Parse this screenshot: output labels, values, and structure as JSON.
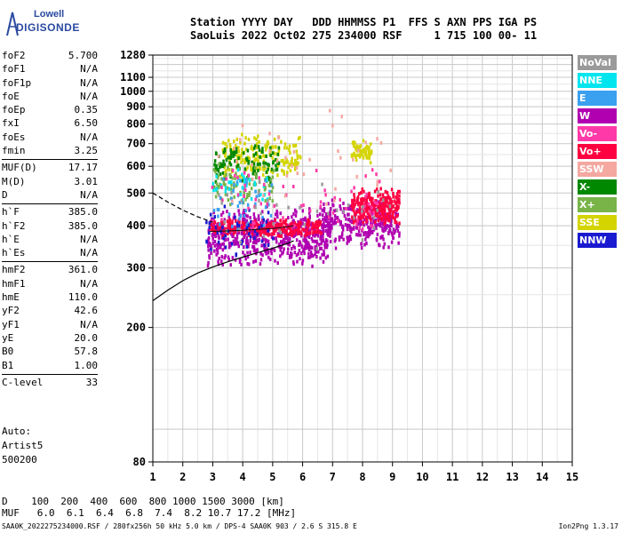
{
  "logo": {
    "line1": "Lowell",
    "line2": "DIGISONDE"
  },
  "header": {
    "labels": "Station YYYY DAY   DDD HHMMSS P1  FFS S AXN PPS IGA PS",
    "values": "SaoLuis 2022 Oct02 275 234000 RSF     1 715 100 00- 11"
  },
  "params": [
    {
      "label": "foF2",
      "value": "5.700"
    },
    {
      "label": "foF1",
      "value": "N/A"
    },
    {
      "label": "foF1p",
      "value": "N/A"
    },
    {
      "label": "foE",
      "value": "N/A"
    },
    {
      "label": "foEp",
      "value": "0.35"
    },
    {
      "label": "fxI",
      "value": "6.50"
    },
    {
      "label": "foEs",
      "value": "N/A"
    },
    {
      "label": "fmin",
      "value": "3.25"
    },
    {
      "sep": true
    },
    {
      "label": "MUF(D)",
      "value": "17.17"
    },
    {
      "label": "M(D)",
      "value": "3.01"
    },
    {
      "label": "D",
      "value": "N/A"
    },
    {
      "sep": true
    },
    {
      "label": "h`F",
      "value": "385.0"
    },
    {
      "label": "h`F2",
      "value": "385.0"
    },
    {
      "label": "h`E",
      "value": "N/A"
    },
    {
      "label": "h`Es",
      "value": "N/A"
    },
    {
      "sep": true
    },
    {
      "label": "hmF2",
      "value": "361.0"
    },
    {
      "label": "hmF1",
      "value": "N/A"
    },
    {
      "label": "hmE",
      "value": "110.0"
    },
    {
      "label": "yF2",
      "value": "42.6"
    },
    {
      "label": "yF1",
      "value": "N/A"
    },
    {
      "label": "yE",
      "value": "20.0"
    },
    {
      "label": "B0",
      "value": "57.8"
    },
    {
      "label": "B1",
      "value": "1.00"
    },
    {
      "sep": true
    },
    {
      "label": "C-level",
      "value": "33"
    }
  ],
  "auto": {
    "line1": "Auto:",
    "line2": "Artist5",
    "line3": "500200"
  },
  "legend": [
    {
      "label": "NoVal",
      "color": "#9a9a9a"
    },
    {
      "label": "NNE",
      "color": "#00e5ee"
    },
    {
      "label": "E",
      "color": "#3aa0f0"
    },
    {
      "label": "W",
      "color": "#b000b0"
    },
    {
      "label": "Vo-",
      "color": "#ff3aa8"
    },
    {
      "label": "Vo+",
      "color": "#ff0040"
    },
    {
      "label": "SSW",
      "color": "#f4a8a0"
    },
    {
      "label": "X-",
      "color": "#008800"
    },
    {
      "label": "X+",
      "color": "#78b448"
    },
    {
      "label": "SSE",
      "color": "#d4d400"
    },
    {
      "label": "NNW",
      "color": "#1a1ad0"
    }
  ],
  "bottom": {
    "d_row": "D    100  200  400  600  800 1000 1500 3000 [km]",
    "muf_row": "MUF   6.0  6.1  6.4  6.8  7.4  8.2 10.7 17.2 [MHz]"
  },
  "footer": {
    "left": "SAA0K_2022275234000.RSF / 280fx256h 50 kHz 5.0 km / DPS-4 SAA0K 903 / 2.6 S 315.8 E",
    "right": "Ion2Png 1.3.17"
  },
  "chart_data": {
    "type": "scatter",
    "x_ticks": [
      "1",
      "2",
      "3",
      "4",
      "5",
      "6",
      "7",
      "8",
      "9",
      "10",
      "11",
      "12",
      "13",
      "14",
      "15"
    ],
    "y_ticks": [
      "80",
      "200",
      "300",
      "400",
      "500",
      "600",
      "700",
      "800",
      "900",
      "1000",
      "1100",
      "1280"
    ],
    "xlim": [
      1,
      15
    ],
    "ylim": [
      80,
      1280
    ],
    "y_scale": "log",
    "grid": true,
    "clusters": [
      {
        "series": "W",
        "x": [
          2.8,
          6.9
        ],
        "y": [
          300,
          460
        ],
        "n": 600
      },
      {
        "series": "W",
        "x": [
          6.6,
          9.2
        ],
        "y": [
          340,
          480
        ],
        "n": 300
      },
      {
        "series": "Vo+",
        "x": [
          2.9,
          6.6
        ],
        "y": [
          370,
          420
        ],
        "n": 260
      },
      {
        "series": "Vo+",
        "x": [
          7.6,
          9.2
        ],
        "y": [
          400,
          520
        ],
        "n": 260
      },
      {
        "series": "SSE",
        "x": [
          3.3,
          5.9
        ],
        "y": [
          540,
          760
        ],
        "n": 180
      },
      {
        "series": "SSE",
        "x": [
          7.6,
          8.3
        ],
        "y": [
          610,
          720
        ],
        "n": 60
      },
      {
        "series": "X-",
        "x": [
          3.0,
          5.2
        ],
        "y": [
          520,
          720
        ],
        "n": 110
      },
      {
        "series": "X+",
        "x": [
          3.0,
          5.0
        ],
        "y": [
          450,
          620
        ],
        "n": 80
      },
      {
        "series": "NNE",
        "x": [
          2.9,
          4.8
        ],
        "y": [
          460,
          600
        ],
        "n": 40
      },
      {
        "series": "E",
        "x": [
          3.0,
          5.0
        ],
        "y": [
          380,
          560
        ],
        "n": 40
      },
      {
        "series": "NNW",
        "x": [
          2.7,
          5.0
        ],
        "y": [
          310,
          460
        ],
        "n": 50
      },
      {
        "series": "Vo-",
        "x": [
          2.9,
          8.6
        ],
        "y": [
          380,
          620
        ],
        "n": 70
      },
      {
        "series": "SSW",
        "x": [
          3.0,
          9.0
        ],
        "y": [
          420,
          900
        ],
        "n": 40
      },
      {
        "series": "NoVal",
        "x": [
          3.0,
          9.0
        ],
        "y": [
          340,
          560
        ],
        "n": 40
      }
    ],
    "profile_solid": {
      "x": [
        1.0,
        1.5,
        2.0,
        2.5,
        3.0,
        3.5,
        4.0,
        4.5,
        5.0,
        5.5,
        5.7
      ],
      "y": [
        240,
        258,
        275,
        290,
        302,
        313,
        323,
        333,
        343,
        355,
        361
      ]
    },
    "profile_dashed": {
      "x": [
        1.0,
        1.5,
        2.0,
        2.5,
        3.0
      ],
      "y": [
        500,
        470,
        445,
        425,
        410
      ]
    },
    "trace_line": {
      "x": [
        2.9,
        3.5,
        4.0,
        4.5,
        5.0,
        5.5,
        5.7
      ],
      "y": [
        385,
        386,
        388,
        390,
        393,
        397,
        400
      ]
    }
  }
}
